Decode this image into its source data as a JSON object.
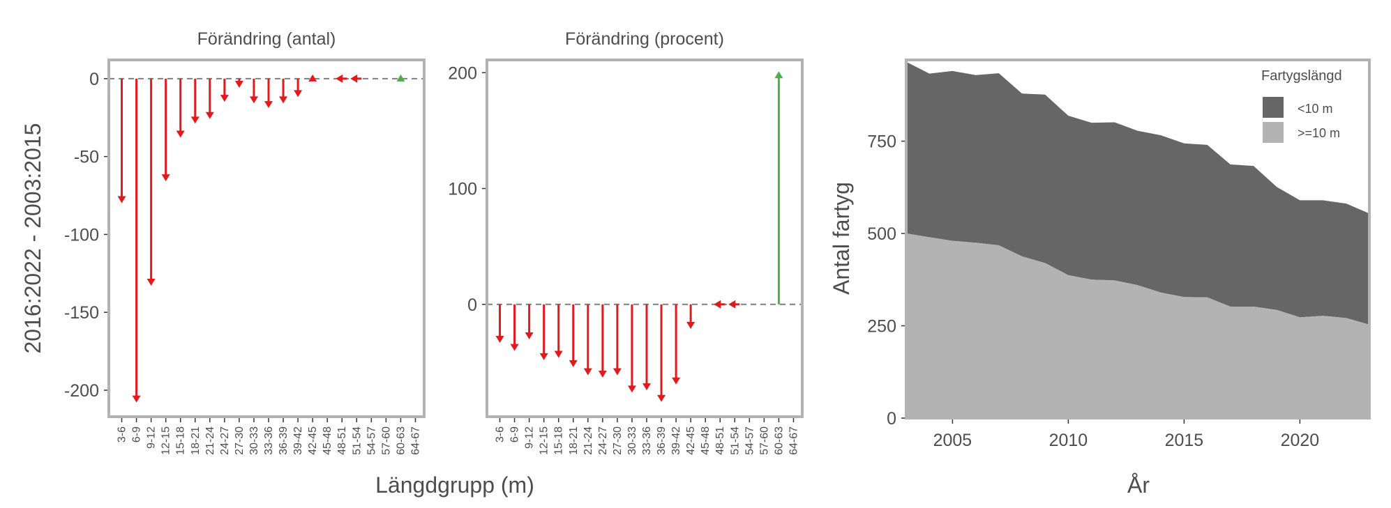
{
  "colors": {
    "decrease": "#e31a1c",
    "increase": "#4daf4a",
    "frame": "#b3b3b3",
    "dashed": "#7f7f7f",
    "area_small": "#666666",
    "area_large": "#b3b3b3"
  },
  "categories": [
    "3-6",
    "6-9",
    "9-12",
    "12-15",
    "15-18",
    "18-21",
    "21-24",
    "24-27",
    "27-30",
    "30-33",
    "33-36",
    "36-39",
    "39-42",
    "42-45",
    "45-48",
    "48-51",
    "51-54",
    "54-57",
    "57-60",
    "60-63",
    "64-67"
  ],
  "panels": {
    "antal": {
      "title": "Förändring (antal)"
    },
    "procent": {
      "title": "Förändring (procent)"
    },
    "ylabel": "2016:2022 - 2003:2015",
    "xlabel": "Längdgrupp (m)"
  },
  "area": {
    "ylabel": "Antal fartyg",
    "xlabel": "År",
    "legend_title": "Fartygslängd",
    "legend_items": [
      "<10 m",
      ">=10 m"
    ]
  },
  "chart_data": [
    {
      "type": "bar",
      "title": "Förändring (antal)",
      "xlabel": "Längdgrupp (m)",
      "ylabel": "2016:2022 - 2003:2015",
      "ylim": [
        -217,
        12
      ],
      "yticks": [
        0,
        -50,
        -100,
        -150,
        -200
      ],
      "ytick_labels": [
        "0",
        "-50",
        "-100",
        "-150",
        "-200"
      ],
      "reference_line": 0,
      "categories": [
        "3-6",
        "6-9",
        "9-12",
        "12-15",
        "15-18",
        "18-21",
        "21-24",
        "24-27",
        "27-30",
        "30-33",
        "33-36",
        "36-39",
        "39-42",
        "42-45",
        "45-48",
        "48-51",
        "51-54",
        "54-57",
        "57-60",
        "60-63",
        "64-67"
      ],
      "values": [
        -79,
        -207,
        -132,
        -65,
        -37,
        -28,
        -25,
        -14,
        -5,
        -15,
        -18,
        -15,
        -11,
        1,
        null,
        0,
        0,
        null,
        null,
        1,
        null
      ]
    },
    {
      "type": "bar",
      "title": "Förändring (procent)",
      "xlabel": "Längdgrupp (m)",
      "ylim": [
        -97,
        211
      ],
      "yticks": [
        200,
        100,
        0
      ],
      "ytick_labels": [
        "200",
        "100",
        "0"
      ],
      "reference_line": 0,
      "categories": [
        "3-6",
        "6-9",
        "9-12",
        "12-15",
        "15-18",
        "18-21",
        "21-24",
        "24-27",
        "27-30",
        "30-33",
        "33-36",
        "36-39",
        "39-42",
        "42-45",
        "45-48",
        "48-51",
        "51-54",
        "54-57",
        "57-60",
        "60-63",
        "64-67"
      ],
      "values": [
        -32,
        -39,
        -29,
        -47,
        -45,
        -53,
        -60,
        -62,
        -60,
        -75,
        -73,
        -83,
        -68,
        -20,
        null,
        0,
        0,
        null,
        null,
        200,
        null
      ]
    },
    {
      "type": "area",
      "xlabel": "År",
      "ylabel": "Antal fartyg",
      "xlim": [
        2003,
        2023
      ],
      "ylim": [
        0,
        970
      ],
      "xticks": [
        2005,
        2010,
        2015,
        2020
      ],
      "yticks": [
        0,
        250,
        500,
        750
      ],
      "legend_title": "Fartygslängd",
      "legend_position": "top-right",
      "x": [
        2003,
        2004,
        2005,
        2006,
        2007,
        2008,
        2009,
        2010,
        2011,
        2012,
        2013,
        2014,
        2015,
        2016,
        2017,
        2018,
        2019,
        2020,
        2021,
        2022,
        2023
      ],
      "series": [
        {
          "name": ">=10 m",
          "values": [
            500,
            490,
            480,
            475,
            468,
            438,
            420,
            387,
            375,
            373,
            360,
            340,
            328,
            327,
            302,
            302,
            293,
            273,
            277,
            271,
            253
          ]
        },
        {
          "name": "<10 m",
          "values": [
            465,
            443,
            460,
            454,
            466,
            441,
            456,
            432,
            425,
            428,
            418,
            426,
            416,
            413,
            385,
            381,
            333,
            317,
            313,
            310,
            301
          ]
        }
      ]
    }
  ]
}
